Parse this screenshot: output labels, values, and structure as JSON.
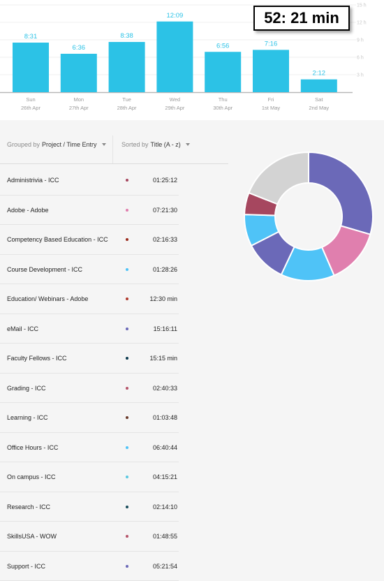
{
  "total": {
    "text": "52: 21 min"
  },
  "chart_data": {
    "type": "bar",
    "categories": [
      {
        "day": "Sun",
        "date": "26th Apr"
      },
      {
        "day": "Mon",
        "date": "27th Apr"
      },
      {
        "day": "Tue",
        "date": "28th Apr"
      },
      {
        "day": "Wed",
        "date": "29th Apr"
      },
      {
        "day": "Thu",
        "date": "30th Apr"
      },
      {
        "day": "Fri",
        "date": "1st May"
      },
      {
        "day": "Sat",
        "date": "2nd May"
      }
    ],
    "value_labels": [
      "8:31",
      "6:36",
      "8:38",
      "12:09",
      "6:56",
      "7:16",
      "2:12"
    ],
    "values_hours": [
      8.52,
      6.6,
      8.63,
      12.15,
      6.93,
      7.27,
      2.2
    ],
    "y_ticks": [
      "3 h",
      "6 h",
      "9 h",
      "12 h",
      "15 h"
    ],
    "ylim": [
      0,
      15
    ],
    "bar_color": "#2cc2e6"
  },
  "controls": {
    "grouped_prefix": "Grouped by",
    "grouped_value": "Project / Time Entry",
    "sorted_prefix": "Sorted by",
    "sorted_value": "Title (A - z)"
  },
  "entries": [
    {
      "name": "Administrivia - ICC",
      "duration": "01:25:12",
      "color": "#a6475f"
    },
    {
      "name": "Adobe - Adobe",
      "duration": "07:21:30",
      "color": "#e07fae"
    },
    {
      "name": "Competency Based Education - ICC",
      "duration": "02:16:33",
      "color": "#9b2d1f"
    },
    {
      "name": "Course Development - ICC",
      "duration": "01:28:26",
      "color": "#4fc3f7"
    },
    {
      "name": "Education/ Webinars - Adobe",
      "duration": "12:30 min",
      "color": "#b03a2e"
    },
    {
      "name": "eMail - ICC",
      "duration": "15:16:11",
      "color": "#6b69b8"
    },
    {
      "name": "Faculty Fellows - ICC",
      "duration": "15:15 min",
      "color": "#0d3b4f"
    },
    {
      "name": "Grading - ICC",
      "duration": "02:40:33",
      "color": "#b5546a"
    },
    {
      "name": "Learning - ICC",
      "duration": "01:03:48",
      "color": "#6b3a2a"
    },
    {
      "name": "Office Hours - ICC",
      "duration": "06:40:44",
      "color": "#4fc3f7"
    },
    {
      "name": "On campus - ICC",
      "duration": "04:15:21",
      "color": "#5bc8e0"
    },
    {
      "name": "Research - ICC",
      "duration": "02:14:10",
      "color": "#1a4d5c"
    },
    {
      "name": "SkillsUSA - WOW",
      "duration": "01:48:55",
      "color": "#b5546a"
    },
    {
      "name": "Support - ICC",
      "duration": "05:21:54",
      "color": "#6b69b8"
    }
  ],
  "donut": {
    "slices": [
      {
        "value": 29.5,
        "color": "#6b69b8"
      },
      {
        "value": 14.0,
        "color": "#e07fae"
      },
      {
        "value": 13.5,
        "color": "#4fc3f7"
      },
      {
        "value": 10.5,
        "color": "#6b69b8"
      },
      {
        "value": 8.0,
        "color": "#4fc3f7"
      },
      {
        "value": 5.5,
        "color": "#a6475f"
      },
      {
        "value": 19.0,
        "color": "#d3d3d3"
      }
    ]
  }
}
